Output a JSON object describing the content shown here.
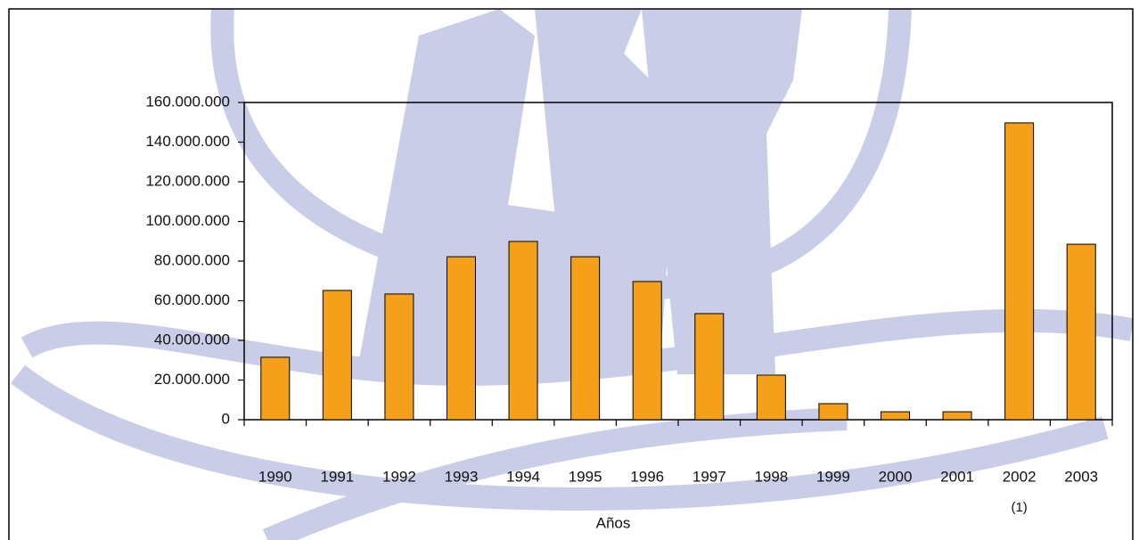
{
  "chart_data": {
    "type": "bar",
    "x_label": "Años",
    "note": "(1)",
    "categories": [
      "1990",
      "1991",
      "1992",
      "1993",
      "1994",
      "1995",
      "1996",
      "1997",
      "1998",
      "1999",
      "2000",
      "2001",
      "2002",
      "2003"
    ],
    "values": [
      31500000,
      65200000,
      63400000,
      82200000,
      89900000,
      82200000,
      69700000,
      53500000,
      22500000,
      8100000,
      4000000,
      4000000,
      149700000,
      88500000
    ],
    "color": "#f5a01a",
    "ylim": [
      0,
      160000000
    ],
    "yticks": [
      0,
      {
        "value": 20000000,
        "label": "20.000.000"
      },
      {
        "value": 40000000,
        "label": "40.000.000"
      },
      {
        "value": 60000000,
        "label": "60.000.000"
      },
      {
        "value": 80000000,
        "label": "80.000.000"
      },
      {
        "value": 100000000,
        "label": "100.000.000"
      },
      {
        "value": 120000000,
        "label": "120.000.000"
      },
      {
        "value": 140000000,
        "label": "140.000.000"
      },
      {
        "value": 160000000,
        "label": "160.000.000"
      }
    ],
    "grid": false
  }
}
